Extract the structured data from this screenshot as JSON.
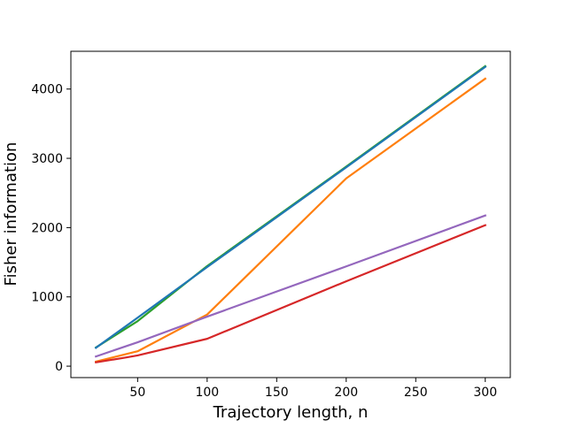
{
  "chart_data": {
    "type": "line",
    "title": "",
    "xlabel": "Trajectory length, n",
    "ylabel": "Fisher information",
    "xlim": [
      2,
      318
    ],
    "ylim": [
      -165,
      4545
    ],
    "xticks": [
      50,
      100,
      150,
      200,
      250,
      300
    ],
    "yticks": [
      0,
      1000,
      2000,
      3000,
      4000
    ],
    "grid": false,
    "legend": "none",
    "series": [
      {
        "color": "#2ca02c",
        "x": [
          20,
          50,
          100,
          200,
          300
        ],
        "y": [
          270,
          650,
          1445,
          2880,
          4330
        ]
      },
      {
        "color": "#1f77b4",
        "x": [
          20,
          50,
          100,
          200,
          300
        ],
        "y": [
          265,
          700,
          1430,
          2870,
          4320
        ]
      },
      {
        "color": "#ff7f0e",
        "x": [
          20,
          50,
          100,
          200,
          300
        ],
        "y": [
          65,
          215,
          745,
          2710,
          4150
        ]
      },
      {
        "color": "#9467bd",
        "x": [
          20,
          50,
          100,
          200,
          300
        ],
        "y": [
          140,
          345,
          715,
          1440,
          2175
        ]
      },
      {
        "color": "#d62728",
        "x": [
          20,
          40,
          50,
          100,
          200,
          300
        ],
        "y": [
          55,
          120,
          155,
          395,
          1225,
          2035
        ]
      }
    ]
  }
}
